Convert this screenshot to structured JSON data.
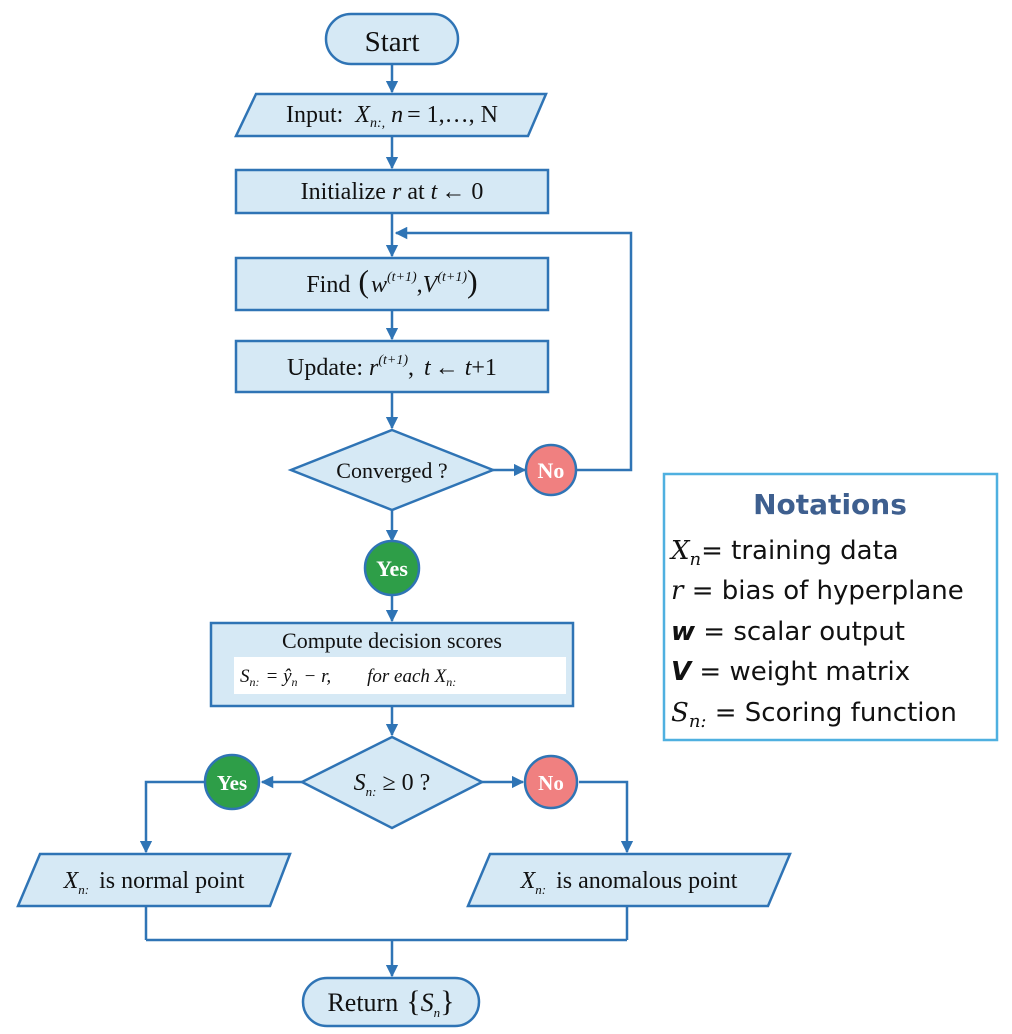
{
  "flowchart": {
    "start": "Start",
    "input": {
      "label": "Input:",
      "var": "X",
      "var_sub": "n:,",
      "range_var": "n",
      "range_rest": "= 1,…, N"
    },
    "init": {
      "pre": "Initialize",
      "var": "r",
      "mid": "at",
      "var2": "t",
      "rest": "← 0"
    },
    "find": {
      "label": "Find",
      "var1": "w",
      "sup1": "(t+1)",
      "comma": ",",
      "var2": "V",
      "sup2": "(t+1)"
    },
    "update": {
      "label": "Update:",
      "var": "r",
      "sup": "(t+1)",
      "comma": ",",
      "var2": "t",
      "arrow": "← ",
      "var3": "t",
      "rest": "+1"
    },
    "converged": "Converged ?",
    "no_label": "No",
    "yes_label": "Yes",
    "compute": {
      "title": "Compute decision scores",
      "formula_lhs": "S",
      "formula_sub": "n:",
      "formula_mid": "= ŷ",
      "formula_mid_sub": "n",
      "formula_rest": "− r,",
      "formula_for": "for each X",
      "formula_for_sub": "n:"
    },
    "decision": {
      "var": "S",
      "sub": "n:",
      "rest": "≥ 0 ?"
    },
    "decision_yes": "Yes",
    "decision_no": "No",
    "normal": {
      "var": "X",
      "sub": "n:",
      "rest": "is normal point"
    },
    "anomalous": {
      "var": "X",
      "sub": "n:",
      "rest": "is anomalous point"
    },
    "return": {
      "label": "Return",
      "var": "S",
      "sub": "n"
    }
  },
  "notations": {
    "title": "Notations",
    "items": [
      {
        "sym": "X",
        "sub": "n",
        "text": "= training data"
      },
      {
        "sym": "r",
        "sub": "",
        "text": " = bias of hyperplane"
      },
      {
        "sym": "w",
        "sub": "",
        "text": " = scalar output"
      },
      {
        "sym": "V",
        "sub": "",
        "text": " = weight matrix"
      },
      {
        "sym": "S",
        "sub": "n:",
        "text": " = Scoring function"
      }
    ]
  },
  "colors": {
    "node_fill": "#d6e9f5",
    "edge": "#2f74b5",
    "yes_badge": "#2e9e48",
    "no_badge": "#f08080",
    "notation_title": "#3e5f8f",
    "notation_border": "#4fb0e0"
  }
}
